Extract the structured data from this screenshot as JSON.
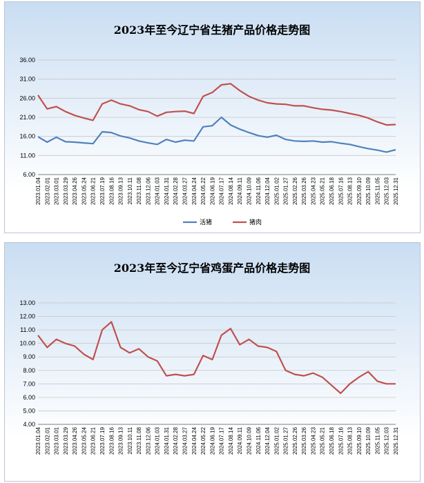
{
  "chart_data": [
    {
      "type": "line",
      "title": "2023年至今辽宁省生猪产品价格走势图",
      "ylim": [
        6,
        36
      ],
      "yticks": [
        "6.00",
        "11.00",
        "16.00",
        "21.00",
        "26.00",
        "31.00",
        "36.00"
      ],
      "grid": true,
      "legend": "bottom",
      "x": [
        "2023.01.04",
        "2023.02.01",
        "2023.03.01",
        "2023.03.29",
        "2023.04.26",
        "2023.05.24",
        "2023.06.21",
        "2023.07.19",
        "2023.08.16",
        "2023.09.13",
        "2023.10.11",
        "2023.11.08",
        "2023.12.06",
        "2024.01.03",
        "2024.01.31",
        "2024.02.28",
        "2024.03.27",
        "2024.04.24",
        "2024.05.22",
        "2024.06.19",
        "2024.07.17",
        "2024.08.14",
        "2024.09.11",
        "2024.10.09",
        "2024.11.06",
        "2024.12.04",
        "2025.01.02",
        "2025.01.27",
        "2025.02.26",
        "2025.03.26",
        "2025.04.23",
        "2025.05.21",
        "2025.06.18",
        "2025.07.16",
        "2025.08.13",
        "2025.09.10",
        "2025.10.09",
        "2025.11.05",
        "2025.12.03",
        "2025.12.31"
      ],
      "series": [
        {
          "name": "活猪",
          "color": "#4f81bd",
          "values": [
            15.9,
            14.5,
            15.8,
            14.6,
            14.5,
            14.3,
            14.1,
            17.2,
            17.0,
            16.1,
            15.6,
            14.8,
            14.3,
            13.9,
            15.2,
            14.5,
            15.0,
            14.8,
            18.5,
            18.8,
            21.0,
            19.0,
            17.9,
            17.0,
            16.2,
            15.8,
            16.3,
            15.2,
            14.8,
            14.7,
            14.8,
            14.5,
            14.6,
            14.2,
            13.9,
            13.3,
            12.8,
            12.4,
            11.9,
            12.5
          ]
        },
        {
          "name": "猪肉",
          "color": "#c0504d",
          "values": [
            26.8,
            23.2,
            23.8,
            22.5,
            21.5,
            20.8,
            20.2,
            24.5,
            25.5,
            24.5,
            24.0,
            23.0,
            22.5,
            21.3,
            22.3,
            22.5,
            22.6,
            22.0,
            26.5,
            27.5,
            29.5,
            29.8,
            28.0,
            26.5,
            25.5,
            24.8,
            24.5,
            24.4,
            24.0,
            24.0,
            23.5,
            23.1,
            22.9,
            22.5,
            22.0,
            21.5,
            20.8,
            19.8,
            19.0,
            19.1
          ]
        }
      ]
    },
    {
      "type": "line",
      "title": "2023年至今辽宁省鸡蛋产品价格走势图",
      "ylim": [
        4,
        13
      ],
      "yticks": [
        "4.00",
        "5.00",
        "6.00",
        "7.00",
        "8.00",
        "9.00",
        "10.00",
        "11.00",
        "12.00",
        "13.00"
      ],
      "grid": true,
      "x": [
        "2023.01.04",
        "2023.02.01",
        "2023.03.01",
        "2023.03.29",
        "2023.04.26",
        "2023.05.24",
        "2023.06.21",
        "2023.07.19",
        "2023.08.16",
        "2023.09.13",
        "2023.10.11",
        "2023.11.08",
        "2023.12.06",
        "2024.01.03",
        "2024.01.31",
        "2024.02.28",
        "2024.03.27",
        "2024.04.24",
        "2024.05.22",
        "2024.06.19",
        "2024.07.17",
        "2024.08.14",
        "2024.09.11",
        "2024.10.09",
        "2024.11.06",
        "2024.12.04",
        "2025.01.02",
        "2025.01.27",
        "2025.02.26",
        "2025.03.26",
        "2025.04.23",
        "2025.05.21",
        "2025.06.18",
        "2025.07.16",
        "2025.08.13",
        "2025.09.10",
        "2025.10.09",
        "2025.11.05",
        "2025.12.03",
        "2025.12.31"
      ],
      "series": [
        {
          "color": "#c0504d",
          "values": [
            10.6,
            9.7,
            10.3,
            10.0,
            9.8,
            9.2,
            8.8,
            11.0,
            11.6,
            9.7,
            9.3,
            9.6,
            9.0,
            8.7,
            7.6,
            7.7,
            7.6,
            7.7,
            9.1,
            8.8,
            10.6,
            11.1,
            9.9,
            10.3,
            9.8,
            9.7,
            9.4,
            8.0,
            7.7,
            7.6,
            7.8,
            7.5,
            6.9,
            6.3,
            7.0,
            7.5,
            7.9,
            7.2,
            7.0,
            7.0
          ]
        }
      ]
    }
  ]
}
